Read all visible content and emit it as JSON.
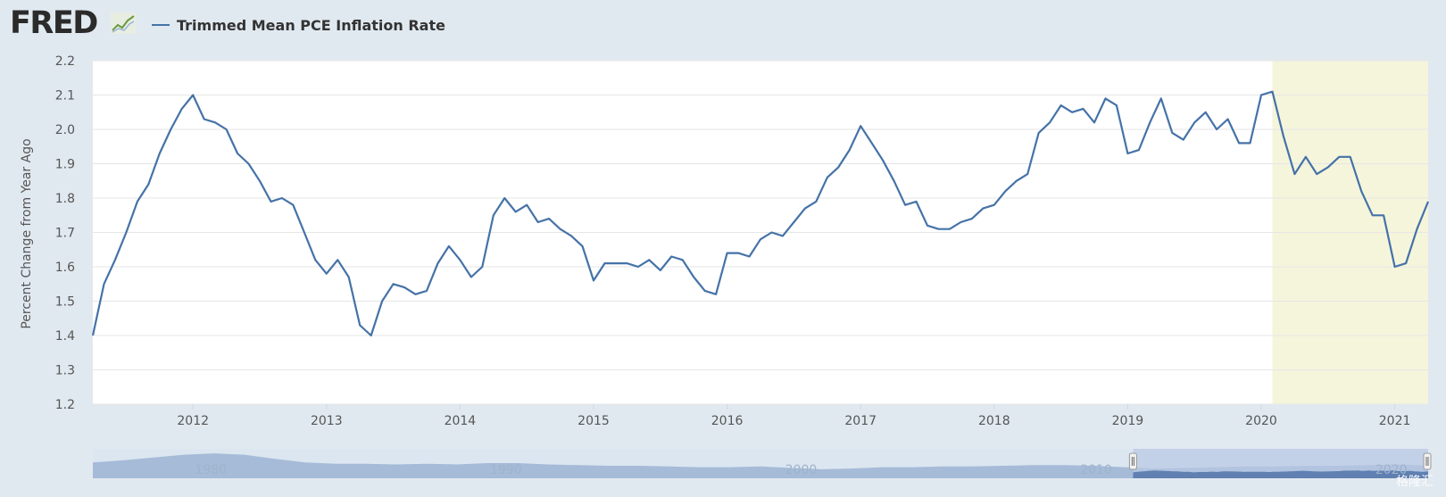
{
  "header": {
    "logo_text": "FRED",
    "legend_label": "Trimmed Mean PCE Inflation Rate"
  },
  "colors": {
    "background": "#e1e9f0",
    "plot_background": "#ffffff",
    "series": "#4572a7",
    "recession_band": "#f5f5dc",
    "navigator_fill": "#9bb3d4",
    "navigator_selection": "#b8c8e4"
  },
  "watermark": "格隆汇",
  "chart_data": {
    "type": "line",
    "title": "",
    "xlabel": "",
    "ylabel": "Percent Change from Year Ago",
    "ylim": [
      1.2,
      2.2
    ],
    "yticks": [
      1.2,
      1.3,
      1.4,
      1.5,
      1.6,
      1.7,
      1.8,
      1.9,
      2.0,
      2.1,
      2.2
    ],
    "xlim": [
      2011.25,
      2021.25
    ],
    "xticks": [
      "2012",
      "2013",
      "2014",
      "2015",
      "2016",
      "2017",
      "2018",
      "2019",
      "2020",
      "2021"
    ],
    "grid": true,
    "legend_position": "top-left",
    "shaded_region": {
      "label": "recession",
      "x_start": "2020-02",
      "x_end": "2021-04"
    },
    "series": [
      {
        "name": "Trimmed Mean PCE Inflation Rate",
        "start": "2011-04",
        "frequency": "monthly",
        "values": [
          1.4,
          1.55,
          1.62,
          1.7,
          1.79,
          1.84,
          1.93,
          2.0,
          2.06,
          2.1,
          2.03,
          2.02,
          2.0,
          1.93,
          1.9,
          1.85,
          1.79,
          1.8,
          1.78,
          1.7,
          1.62,
          1.58,
          1.62,
          1.57,
          1.43,
          1.4,
          1.5,
          1.55,
          1.54,
          1.52,
          1.53,
          1.61,
          1.66,
          1.62,
          1.57,
          1.6,
          1.75,
          1.8,
          1.76,
          1.78,
          1.73,
          1.74,
          1.71,
          1.69,
          1.66,
          1.56,
          1.61,
          1.61,
          1.61,
          1.6,
          1.62,
          1.59,
          1.63,
          1.62,
          1.57,
          1.53,
          1.52,
          1.64,
          1.64,
          1.63,
          1.68,
          1.7,
          1.69,
          1.73,
          1.77,
          1.79,
          1.86,
          1.89,
          1.94,
          2.01,
          1.96,
          1.91,
          1.85,
          1.78,
          1.79,
          1.72,
          1.71,
          1.71,
          1.73,
          1.74,
          1.77,
          1.78,
          1.82,
          1.85,
          1.87,
          1.99,
          2.02,
          2.07,
          2.05,
          2.06,
          2.02,
          2.09,
          2.07,
          1.93,
          1.94,
          2.02,
          2.09,
          1.99,
          1.97,
          2.02,
          2.05,
          2.0,
          2.03,
          1.96,
          1.96,
          2.1,
          2.11,
          1.98,
          1.87,
          1.92,
          1.87,
          1.89,
          1.92,
          1.92,
          1.82,
          1.75,
          1.75,
          1.6,
          1.61,
          1.71,
          1.79
        ]
      }
    ]
  },
  "navigator": {
    "labels": [
      "1980",
      "1990",
      "2000",
      "2010",
      "2020"
    ],
    "range_min": 1976,
    "range_max": 2021.25,
    "selection_start": 2011.25,
    "selection_end": 2021.25,
    "history_values": [
      2.3,
      2.6,
      3.0,
      3.4,
      3.6,
      3.4,
      2.8,
      2.3,
      2.1,
      2.1,
      2.0,
      2.1,
      2.0,
      2.2,
      2.2,
      2.0,
      1.9,
      1.8,
      1.8,
      1.7,
      1.6,
      1.6,
      1.7,
      1.5,
      1.3,
      1.4,
      1.6,
      1.6,
      1.7,
      1.7,
      1.8,
      1.9,
      1.9,
      1.8,
      1.6,
      1.4,
      1.5,
      1.6,
      1.7,
      1.7,
      1.8,
      1.8,
      1.9,
      2.0,
      1.8
    ]
  }
}
